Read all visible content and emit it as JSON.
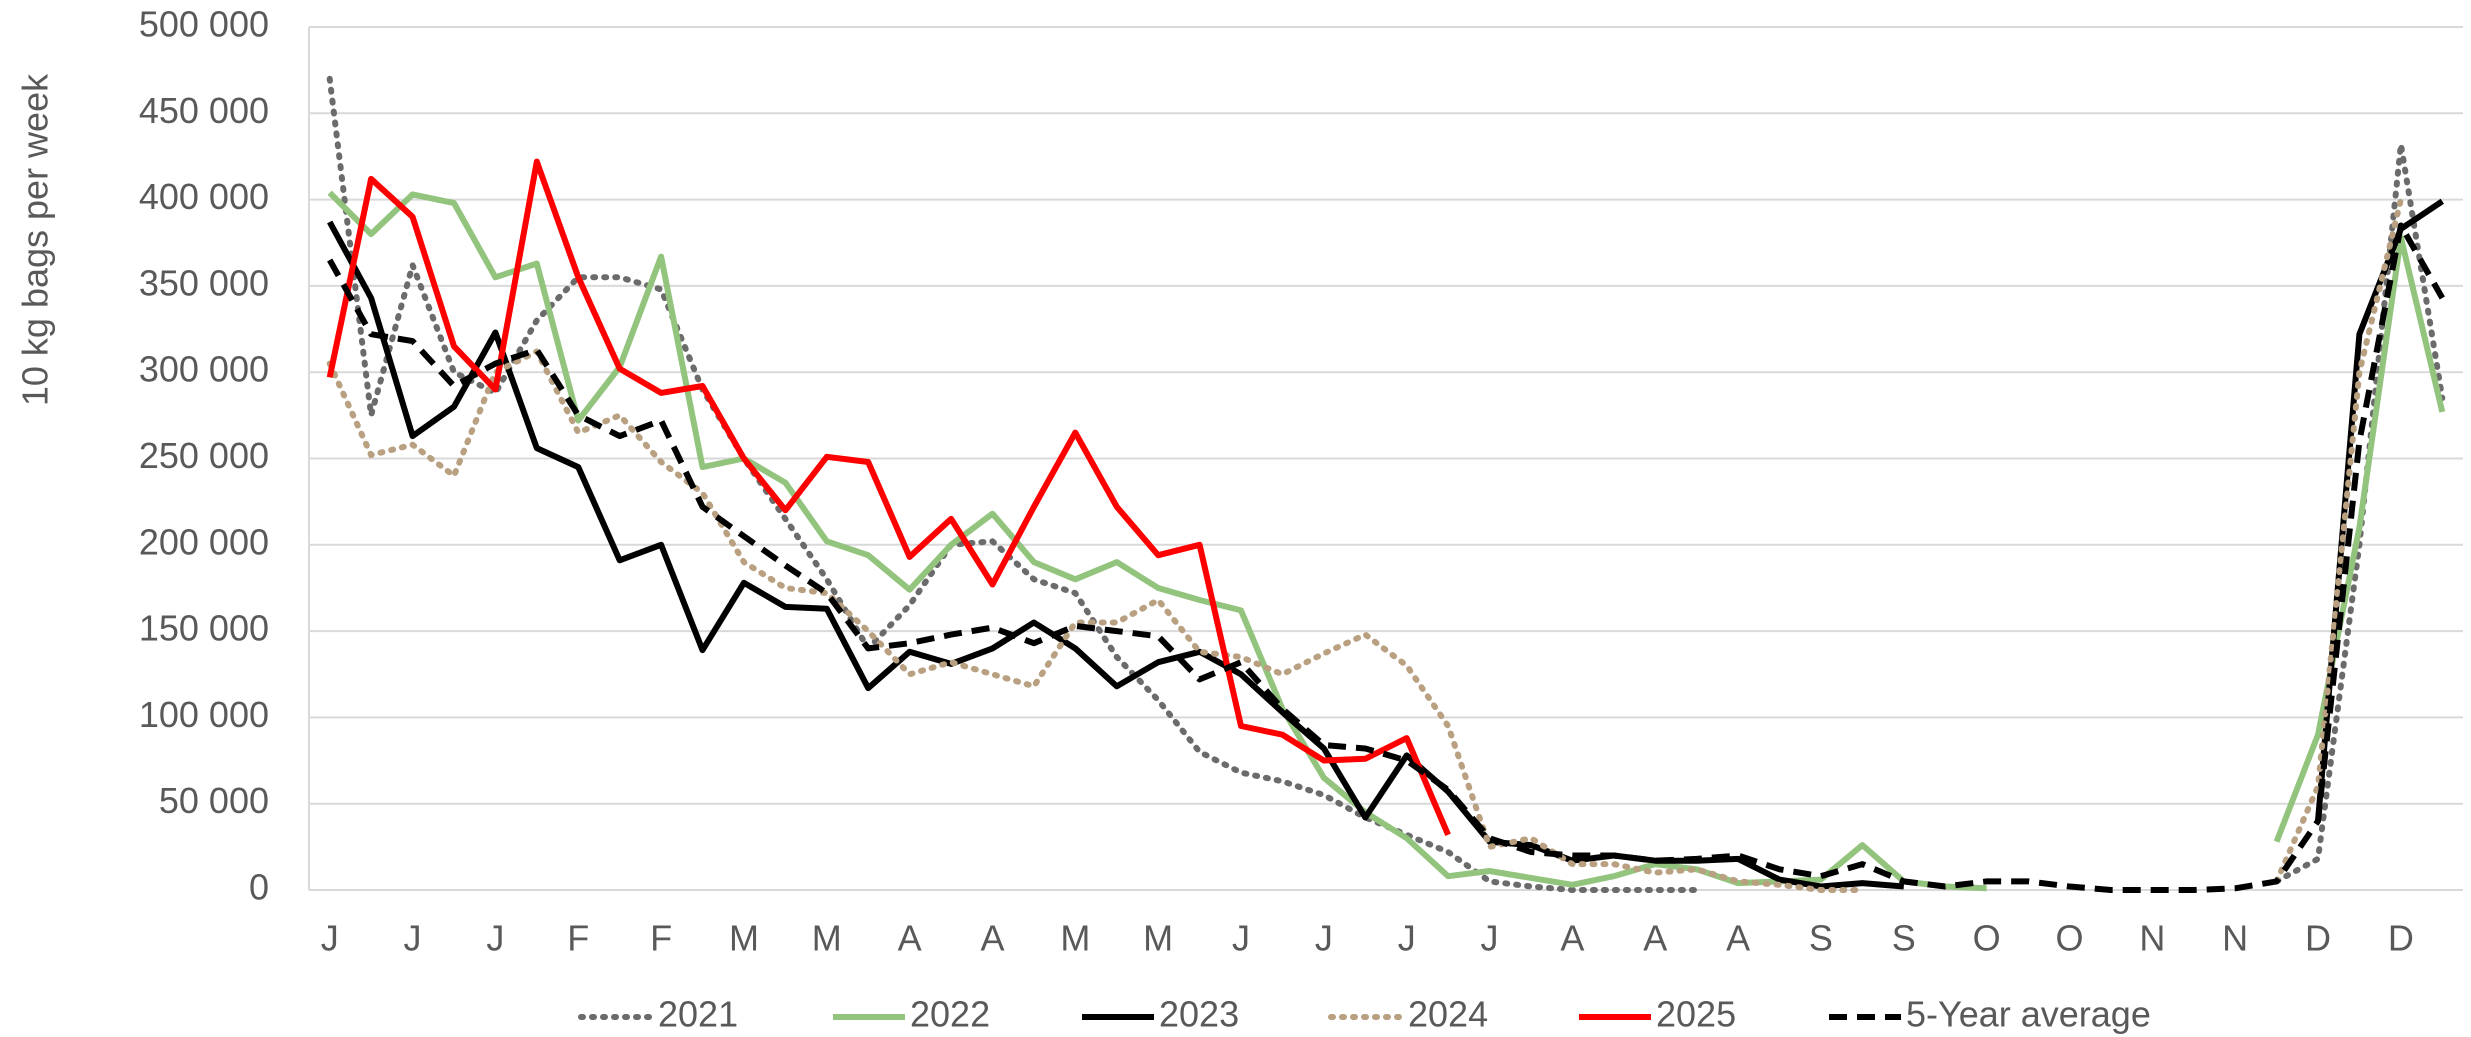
{
  "chart_data": {
    "type": "line",
    "y_label": "10 kg bags per week",
    "categories": [
      "J",
      null,
      "J",
      null,
      "J",
      null,
      "F",
      null,
      "F",
      null,
      "M",
      null,
      "M",
      null,
      "A",
      null,
      "A",
      null,
      "M",
      null,
      "M",
      null,
      "J",
      null,
      "J",
      null,
      "J",
      null,
      "J",
      null,
      "A",
      null,
      "A",
      null,
      "A",
      null,
      "S",
      null,
      "S",
      null,
      "O",
      null,
      "O",
      null,
      "N",
      null,
      "N",
      null,
      "D",
      null,
      "D",
      null
    ],
    "ylim": [
      0,
      500000
    ],
    "yticks": [
      0,
      {
        "value": 50000,
        "label": "50 000"
      },
      {
        "value": 100000,
        "label": "100 000"
      },
      {
        "value": 150000,
        "label": "150 000"
      },
      {
        "value": 200000,
        "label": "200 000"
      },
      {
        "value": 250000,
        "label": "250 000"
      },
      {
        "value": 300000,
        "label": "300 000"
      },
      {
        "value": 350000,
        "label": "350 000"
      },
      {
        "value": 400000,
        "label": "400 000"
      },
      {
        "value": 450000,
        "label": "450 000"
      },
      {
        "value": 500000,
        "label": "500 000"
      }
    ],
    "grid": true,
    "legend": "bottom",
    "series": [
      {
        "name": "2021",
        "color": "#6b6b6b",
        "style": "dotted",
        "values": [
          470000,
          275000,
          362000,
          300000,
          288000,
          330000,
          355000,
          355000,
          348000,
          290000,
          250000,
          215000,
          180000,
          140000,
          165000,
          200000,
          202000,
          180000,
          172000,
          135000,
          110000,
          80000,
          68000,
          63000,
          55000,
          42000,
          32000,
          22000,
          5000,
          2000,
          0,
          0,
          0,
          0,
          null,
          null,
          null,
          null,
          null,
          null,
          null,
          null,
          null,
          null,
          null,
          null,
          null,
          5000,
          18000,
          200000,
          432000,
          285000
        ]
      },
      {
        "name": "2022",
        "color": "#93c47d",
        "style": "solid",
        "values": [
          404000,
          380000,
          403000,
          398000,
          355000,
          363000,
          272000,
          303000,
          367000,
          245000,
          250000,
          236000,
          202000,
          194000,
          174000,
          200000,
          218000,
          190000,
          180000,
          190000,
          175000,
          168000,
          162000,
          105000,
          65000,
          45000,
          30000,
          8000,
          11000,
          7000,
          3000,
          8000,
          15000,
          12000,
          4000,
          5000,
          6000,
          26000,
          5000,
          2000,
          1000,
          null,
          null,
          null,
          null,
          null,
          null,
          28000,
          90000,
          210000,
          378000,
          277000
        ]
      },
      {
        "name": "2023",
        "color": "#000000",
        "style": "solid",
        "values": [
          387000,
          343000,
          263000,
          280000,
          323000,
          256000,
          245000,
          191000,
          200000,
          139000,
          178000,
          164000,
          163000,
          117000,
          138000,
          131000,
          140000,
          155000,
          140000,
          118000,
          132000,
          138000,
          125000,
          103000,
          82000,
          42000,
          78000,
          57000,
          28000,
          26000,
          17000,
          20000,
          17000,
          17000,
          18000,
          6000,
          2000,
          4000,
          2000,
          null,
          null,
          null,
          null,
          null,
          null,
          null,
          null,
          null,
          40000,
          322000,
          383000,
          399000
        ]
      },
      {
        "name": "2024",
        "color": "#b8a081",
        "style": "dotted",
        "values": [
          305000,
          252000,
          258000,
          240000,
          300000,
          312000,
          265000,
          275000,
          248000,
          230000,
          190000,
          175000,
          172000,
          150000,
          125000,
          132000,
          125000,
          118000,
          155000,
          155000,
          168000,
          138000,
          135000,
          125000,
          137000,
          148000,
          130000,
          95000,
          25000,
          30000,
          15000,
          15000,
          10000,
          12000,
          5000,
          3000,
          0,
          0,
          null,
          null,
          null,
          null,
          null,
          null,
          null,
          null,
          null,
          5000,
          60000,
          300000,
          400000,
          null
        ]
      },
      {
        "name": "2025",
        "color": "#ff0000",
        "style": "solid",
        "values": [
          297000,
          412000,
          390000,
          315000,
          290000,
          422000,
          355000,
          302000,
          288000,
          292000,
          250000,
          220000,
          251000,
          248000,
          193000,
          215000,
          177000,
          222000,
          265000,
          222000,
          194000,
          200000,
          95000,
          90000,
          75000,
          76000,
          88000,
          32000,
          null,
          null,
          null,
          null,
          null,
          null,
          null,
          null,
          null,
          null,
          null,
          null,
          null,
          null,
          null,
          null,
          null,
          null,
          null,
          null,
          null,
          null,
          null,
          null
        ]
      },
      {
        "name": "5-Year average",
        "color": "#000000",
        "style": "dashed",
        "values": [
          365000,
          322000,
          318000,
          292000,
          305000,
          313000,
          275000,
          263000,
          272000,
          222000,
          205000,
          188000,
          172000,
          140000,
          143000,
          148000,
          152000,
          143000,
          153000,
          150000,
          147000,
          122000,
          132000,
          105000,
          84000,
          82000,
          75000,
          58000,
          30000,
          22000,
          20000,
          20000,
          17000,
          18000,
          20000,
          12000,
          8000,
          15000,
          5000,
          2000,
          5000,
          5000,
          2000,
          0,
          0,
          0,
          1000,
          5000,
          40000,
          260000,
          385000,
          343000
        ]
      }
    ]
  }
}
